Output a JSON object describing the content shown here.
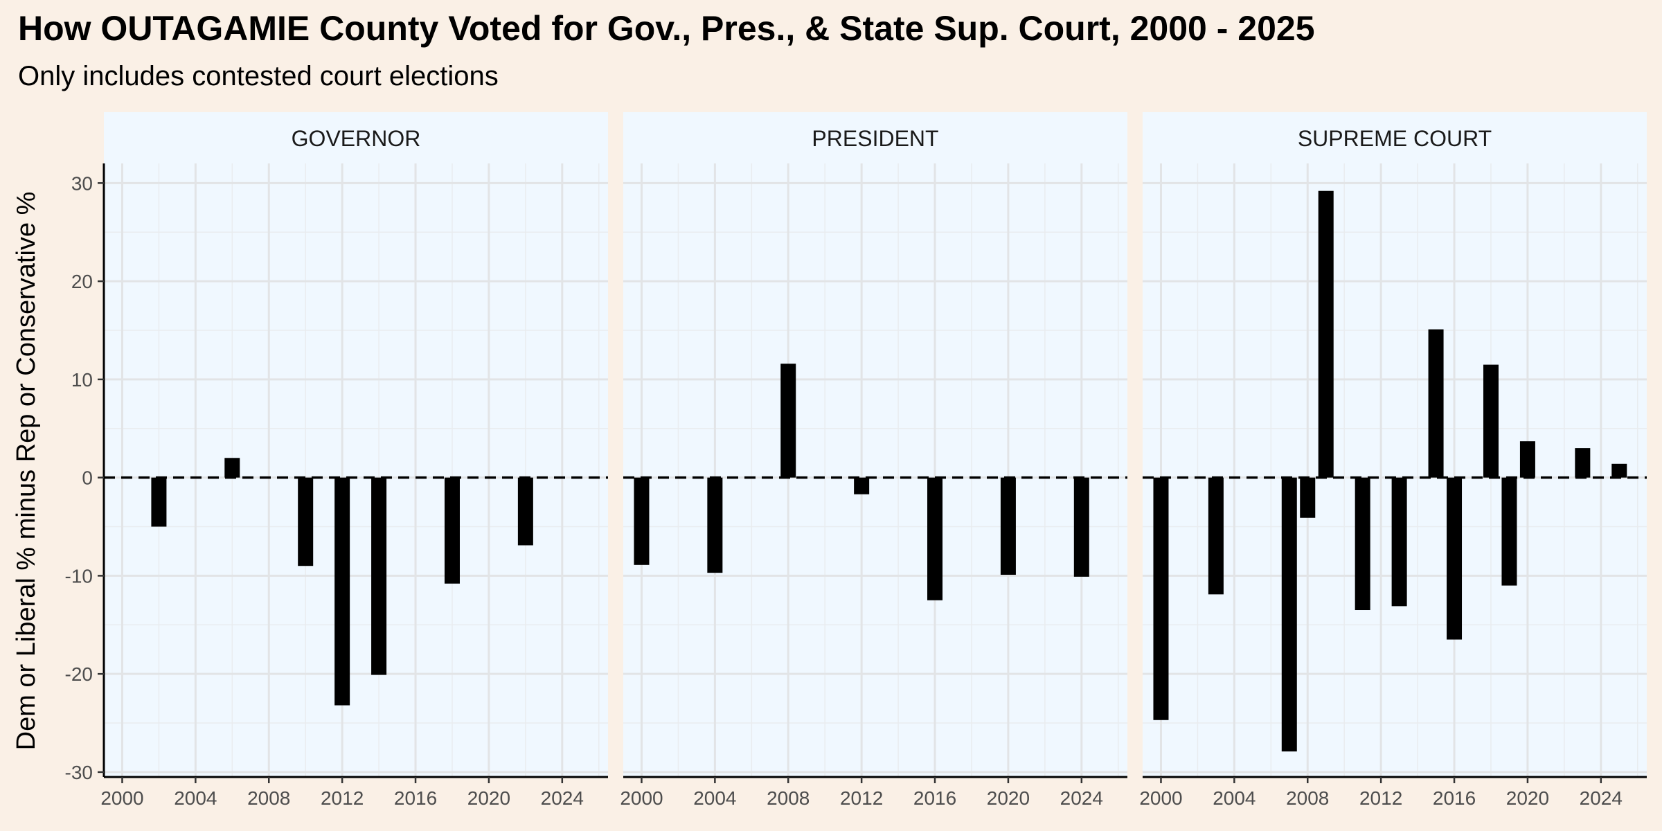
{
  "chart_data": {
    "type": "bar",
    "title": "How OUTAGAMIE County Voted for Gov., Pres., & State Sup. Court, 2000 - 2025",
    "subtitle": "Only includes contested court elections",
    "ylabel": "Dem or Liberal % minus Rep or Conservative %",
    "xlabel": "",
    "ylim": [
      -30.5,
      32
    ],
    "xlim": [
      1999,
      2026.5
    ],
    "y_ticks": [
      -30,
      -20,
      -10,
      0,
      10,
      20,
      30
    ],
    "x_ticks": [
      2000,
      2004,
      2008,
      2012,
      2016,
      2020,
      2024
    ],
    "reference_line": {
      "y": 0,
      "style": "dashed"
    },
    "grid": true,
    "bar_color": "#000000",
    "panel_background": "#f0f8ff",
    "panels": [
      {
        "name": "GOVERNOR",
        "x": [
          2002,
          2006,
          2010,
          2012,
          2014,
          2018,
          2022
        ],
        "values": [
          -5.0,
          2.0,
          -9.0,
          -23.2,
          -20.1,
          -10.8,
          -6.9
        ]
      },
      {
        "name": "PRESIDENT",
        "x": [
          2000,
          2004,
          2008,
          2012,
          2016,
          2020,
          2024
        ],
        "values": [
          -8.9,
          -9.7,
          11.6,
          -1.7,
          -12.5,
          -9.9,
          -10.1
        ]
      },
      {
        "name": "SUPREME COURT",
        "x": [
          2000,
          2003,
          2007,
          2008,
          2009,
          2011,
          2013,
          2015,
          2016,
          2018,
          2019,
          2020,
          2023,
          2025
        ],
        "values": [
          -24.7,
          -11.9,
          -27.9,
          -4.1,
          29.2,
          -13.5,
          -13.1,
          15.1,
          -16.5,
          11.5,
          -11.0,
          3.7,
          3.0,
          1.4
        ]
      }
    ]
  }
}
